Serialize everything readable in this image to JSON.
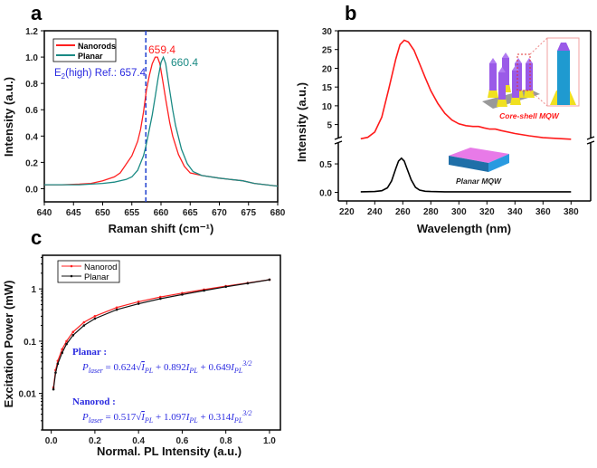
{
  "panels": {
    "a": "a",
    "b": "b",
    "c": "c"
  },
  "chart_data": [
    {
      "type": "line",
      "panel": "a",
      "xlabel": "Raman shift (cm⁻¹)",
      "ylabel": "Intensity (a.u.)",
      "xlim": [
        640,
        680
      ],
      "ylim": [
        -0.1,
        1.2
      ],
      "xticks": [
        640,
        645,
        650,
        655,
        660,
        665,
        670,
        675,
        680
      ],
      "xtick_labels": [
        "640",
        "645",
        "650",
        "655",
        "660",
        "665",
        "670",
        "675",
        "680"
      ],
      "yticks": [
        0,
        0.2,
        0.4,
        0.6,
        0.8,
        1.0,
        1.2
      ],
      "ytick_labels": [
        "0.0",
        "0.2",
        "0.4",
        "0.6",
        "0.8",
        "1.0",
        "1.2"
      ],
      "legend": "top-left",
      "series": [
        {
          "name": "Nanorods",
          "color": "#ff2020",
          "x": [
            640,
            643,
            646,
            648,
            650,
            652,
            653,
            655,
            656,
            656.5,
            657,
            657.5,
            658,
            658.5,
            659,
            659.4,
            659.8,
            660.3,
            660.8,
            661.5,
            662,
            663,
            664,
            665,
            667,
            670,
            672,
            674,
            676,
            678,
            680
          ],
          "y": [
            0.03,
            0.03,
            0.035,
            0.04,
            0.06,
            0.09,
            0.12,
            0.25,
            0.36,
            0.45,
            0.58,
            0.75,
            0.86,
            0.95,
            1.0,
            1.0,
            0.95,
            0.82,
            0.68,
            0.5,
            0.4,
            0.26,
            0.17,
            0.12,
            0.1,
            0.08,
            0.07,
            0.06,
            0.04,
            0.03,
            0.02
          ]
        },
        {
          "name": "Planar",
          "color": "#1a8a84",
          "x": [
            640,
            643,
            646,
            648,
            650,
            652,
            654,
            655,
            656,
            657,
            657.4,
            658,
            658.5,
            659,
            659.5,
            660,
            660.4,
            660.8,
            661.3,
            662,
            662.5,
            663.5,
            664.5,
            665.5,
            667,
            670,
            672,
            674,
            676,
            678,
            680
          ],
          "y": [
            0.03,
            0.03,
            0.03,
            0.035,
            0.04,
            0.05,
            0.07,
            0.09,
            0.14,
            0.25,
            0.32,
            0.45,
            0.56,
            0.7,
            0.84,
            0.96,
            1.0,
            0.95,
            0.8,
            0.6,
            0.48,
            0.3,
            0.19,
            0.13,
            0.1,
            0.08,
            0.07,
            0.06,
            0.04,
            0.03,
            0.02
          ]
        }
      ],
      "annotations": {
        "peak_nanorods": "659.4",
        "peak_planar": "660.4",
        "ref_line_x": 657.4,
        "ref_label_e2": "E",
        "ref_label_sub": "2",
        "ref_label_rest": "(high)  Ref.: 657.4"
      }
    },
    {
      "type": "line",
      "panel": "b",
      "xlabel": "Wavelength (nm)",
      "ylabel": "Intensity (a.u.)",
      "xlim": [
        214,
        394
      ],
      "xticks": [
        220,
        240,
        260,
        280,
        300,
        320,
        340,
        360,
        380
      ],
      "xtick_labels": [
        "220",
        "240",
        "260",
        "280",
        "300",
        "320",
        "340",
        "360",
        "380"
      ],
      "broken_y_axis": true,
      "upper_ylim": [
        0.8,
        30
      ],
      "upper_yticks": [
        5,
        10,
        15,
        20,
        25,
        30
      ],
      "upper_ytick_labels": [
        "5",
        "10",
        "15",
        "20",
        "25",
        "30"
      ],
      "lower_ylim": [
        -0.15,
        0.85
      ],
      "lower_yticks": [
        0.0,
        0.5
      ],
      "lower_ytick_labels": [
        "0.0",
        "0.5"
      ],
      "series": [
        {
          "name": "Core-shell MQW",
          "color": "#ff1a1a",
          "segment": "upper",
          "x": [
            230,
            235,
            240,
            245,
            250,
            255,
            258,
            261,
            264,
            268,
            272,
            276,
            280,
            285,
            290,
            295,
            300,
            305,
            310,
            314,
            318,
            322,
            326,
            330,
            340,
            350,
            360,
            370,
            380
          ],
          "y": [
            1.2,
            1.6,
            3.0,
            7.0,
            14.5,
            22.5,
            26.3,
            27.5,
            27.0,
            24.8,
            21.2,
            17.5,
            14.0,
            10.6,
            8.0,
            6.2,
            5.2,
            4.7,
            4.5,
            4.5,
            4.1,
            3.8,
            3.8,
            3.4,
            2.6,
            2.0,
            1.5,
            1.3,
            1.1
          ]
        },
        {
          "name": "Planar MQW",
          "color": "#000000",
          "segment": "lower",
          "x": [
            230,
            240,
            245,
            249,
            252,
            255,
            257,
            259,
            261,
            263,
            266,
            269,
            272,
            276,
            280,
            290,
            300,
            320,
            340,
            360,
            380
          ],
          "y": [
            0.01,
            0.015,
            0.03,
            0.08,
            0.2,
            0.42,
            0.55,
            0.6,
            0.55,
            0.42,
            0.22,
            0.09,
            0.04,
            0.02,
            0.015,
            0.01,
            0.01,
            0.01,
            0.01,
            0.01,
            0.01
          ]
        }
      ],
      "inset_labels": {
        "core_shell": "Core-shell MQW",
        "planar": "Planar MQW"
      }
    },
    {
      "type": "line",
      "panel": "c",
      "xlabel": "Normal. PL Intensity (a.u.)",
      "ylabel": "Excitation Power (mW)",
      "xlim": [
        -0.04,
        1.05
      ],
      "ylim": [
        0.002,
        4.4
      ],
      "yscale": "log",
      "xticks": [
        0,
        0.2,
        0.4,
        0.6,
        0.8,
        1.0
      ],
      "xtick_labels": [
        "0.0",
        "0.2",
        "0.4",
        "0.6",
        "0.8",
        "1.0"
      ],
      "yticks": [
        0.01,
        0.1,
        1
      ],
      "ytick_labels": [
        "0.01",
        "0.1",
        "1"
      ],
      "legend": "top-left",
      "series": [
        {
          "name": "Nanorod",
          "color": "#ff2020",
          "x": [
            0.01,
            0.02,
            0.03,
            0.05,
            0.07,
            0.1,
            0.15,
            0.2,
            0.3,
            0.4,
            0.5,
            0.6,
            0.7,
            0.8,
            0.9,
            1.0
          ],
          "y": [
            0.013,
            0.028,
            0.042,
            0.07,
            0.1,
            0.15,
            0.23,
            0.3,
            0.44,
            0.57,
            0.7,
            0.83,
            0.97,
            1.13,
            1.3,
            1.5
          ]
        },
        {
          "name": "Planar",
          "color": "#111111",
          "x": [
            0.01,
            0.02,
            0.03,
            0.05,
            0.07,
            0.1,
            0.15,
            0.2,
            0.3,
            0.4,
            0.5,
            0.6,
            0.7,
            0.8,
            0.9,
            1.0
          ],
          "y": [
            0.012,
            0.025,
            0.037,
            0.06,
            0.088,
            0.13,
            0.2,
            0.27,
            0.4,
            0.52,
            0.65,
            0.78,
            0.93,
            1.1,
            1.28,
            1.5
          ]
        }
      ],
      "formulas": [
        {
          "heading": "Planar :",
          "a": "0.624",
          "b": "0.892",
          "c": "0.649"
        },
        {
          "heading": "Nanorod :",
          "a": "0.517",
          "b": "1.097",
          "c": "0.314"
        }
      ],
      "formula_symbols": {
        "P": "P",
        "laser": "laser",
        "I": "I",
        "PL": "PL",
        "exp": "3/2"
      }
    }
  ]
}
